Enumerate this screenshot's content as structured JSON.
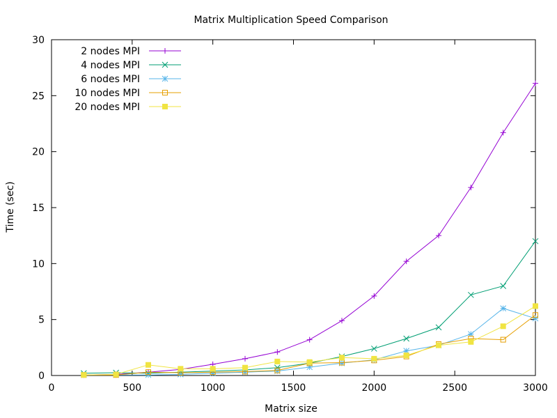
{
  "chart_data": {
    "type": "line",
    "title": "Matrix Multiplication Speed Comparison",
    "xlabel": "Matrix size",
    "ylabel": "Time (sec)",
    "xlim": [
      0,
      3000
    ],
    "ylim": [
      0,
      30
    ],
    "xticks": [
      0,
      500,
      1000,
      1500,
      2000,
      2500,
      3000
    ],
    "yticks": [
      0,
      5,
      10,
      15,
      20,
      25,
      30
    ],
    "grid": false,
    "legend_position": "top-left",
    "x": [
      200,
      400,
      600,
      800,
      1000,
      1200,
      1400,
      1600,
      1800,
      2000,
      2200,
      2400,
      2600,
      2800,
      3000
    ],
    "series": [
      {
        "name": "2 nodes MPI",
        "color": "#9400d3",
        "marker": "plus",
        "values": [
          0.05,
          0.1,
          0.3,
          0.55,
          1.0,
          1.5,
          2.1,
          3.2,
          4.9,
          7.1,
          10.2,
          12.5,
          16.8,
          21.7,
          26.1
        ]
      },
      {
        "name": "4 nodes MPI",
        "color": "#009e73",
        "marker": "cross",
        "values": [
          0.2,
          0.25,
          0.2,
          0.3,
          0.4,
          0.5,
          0.7,
          1.1,
          1.7,
          2.4,
          3.3,
          4.3,
          7.2,
          8.0,
          12.0
        ]
      },
      {
        "name": "6 nodes MPI",
        "color": "#56b4e9",
        "marker": "star",
        "values": [
          0.05,
          0.05,
          0.05,
          0.1,
          0.2,
          0.3,
          0.4,
          0.75,
          1.1,
          1.4,
          2.2,
          2.7,
          3.7,
          6.0,
          5.1
        ]
      },
      {
        "name": "10 nodes MPI",
        "color": "#e69f00",
        "marker": "square-open",
        "values": [
          0.05,
          0.05,
          0.3,
          0.25,
          0.3,
          0.35,
          0.45,
          1.1,
          1.15,
          1.35,
          1.7,
          2.8,
          3.3,
          3.2,
          5.4
        ]
      },
      {
        "name": "20 nodes MPI",
        "color": "#f0e442",
        "marker": "square-filled",
        "values": [
          0.05,
          0.1,
          0.95,
          0.6,
          0.6,
          0.7,
          1.25,
          1.2,
          1.6,
          1.5,
          1.8,
          2.7,
          3.0,
          4.4,
          6.2
        ]
      }
    ]
  }
}
